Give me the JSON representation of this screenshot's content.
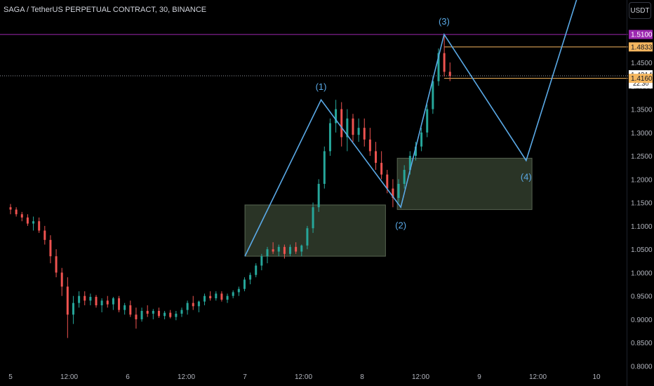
{
  "title": "SAGA / TetherUS PERPETUAL CONTRACT, 30, BINANCE",
  "currency_button": "USDT",
  "chart_data": {
    "type": "candlestick",
    "symbol": "SAGA / TetherUS PERPETUAL CONTRACT",
    "interval": "30",
    "exchange": "BINANCE",
    "y_ticks": [
      "1.4500",
      "1.4000",
      "1.3500",
      "1.3000",
      "1.2500",
      "1.2000",
      "1.1500",
      "1.1000",
      "1.0500",
      "1.0000",
      "0.9500",
      "0.9000",
      "0.8500",
      "0.8000"
    ],
    "x_ticks": [
      "5",
      "12:00",
      "6",
      "12:00",
      "7",
      "12:00",
      "8",
      "12:00",
      "9",
      "12:00",
      "10"
    ],
    "ylim": [
      0.8,
      1.55
    ],
    "price_labels": [
      {
        "value": "1.5100",
        "color": "#9c27b0"
      },
      {
        "value": "1.4833",
        "color": "#f5b75f"
      },
      {
        "value": "1.4214",
        "color": "#ffffff",
        "sub": "22:30"
      },
      {
        "value": "1.4160",
        "color": "#f5b75f"
      }
    ],
    "horizontal_lines": [
      {
        "price": 1.51,
        "color": "#9c27b0",
        "style": "solid"
      },
      {
        "price": 1.4833,
        "color": "#f5b75f",
        "style": "solid"
      },
      {
        "price": 1.4214,
        "color": "#9598a1",
        "style": "dotted"
      },
      {
        "price": 1.416,
        "color": "#f5b75f",
        "style": "solid"
      }
    ],
    "wave_labels": [
      "(1)",
      "(2)",
      "(3)",
      "(4)"
    ],
    "wave_points": [
      {
        "day": 7.0,
        "price": 1.035
      },
      {
        "day": 7.65,
        "price": 1.37
      },
      {
        "day": 8.33,
        "price": 1.14
      },
      {
        "day": 8.7,
        "price": 1.51
      },
      {
        "day": 9.4,
        "price": 1.24
      },
      {
        "day": 9.85,
        "price": 1.6
      }
    ],
    "zones": [
      {
        "day_from": 7.0,
        "day_to": 8.2,
        "price_low": 1.035,
        "price_high": 1.145
      },
      {
        "day_from": 8.3,
        "day_to": 9.45,
        "price_low": 1.135,
        "price_high": 1.245
      }
    ],
    "candles_ohlc": [
      [
        1.14,
        1.147,
        1.125,
        1.135
      ],
      [
        1.135,
        1.14,
        1.12,
        1.125
      ],
      [
        1.125,
        1.13,
        1.11,
        1.118
      ],
      [
        1.118,
        1.125,
        1.1,
        1.105
      ],
      [
        1.105,
        1.12,
        1.09,
        1.11
      ],
      [
        1.11,
        1.118,
        1.085,
        1.09
      ],
      [
        1.09,
        1.1,
        1.06,
        1.07
      ],
      [
        1.07,
        1.08,
        1.02,
        1.035
      ],
      [
        1.035,
        1.05,
        0.99,
        1.0
      ],
      [
        1.0,
        1.01,
        0.95,
        0.97
      ],
      [
        0.97,
        0.99,
        0.86,
        0.91
      ],
      [
        0.91,
        0.95,
        0.89,
        0.935
      ],
      [
        0.935,
        0.96,
        0.925,
        0.95
      ],
      [
        0.95,
        0.96,
        0.93,
        0.94
      ],
      [
        0.94,
        0.955,
        0.93,
        0.948
      ],
      [
        0.948,
        0.952,
        0.925,
        0.93
      ],
      [
        0.93,
        0.945,
        0.915,
        0.94
      ],
      [
        0.94,
        0.95,
        0.925,
        0.932
      ],
      [
        0.932,
        0.948,
        0.92,
        0.945
      ],
      [
        0.945,
        0.95,
        0.915,
        0.92
      ],
      [
        0.92,
        0.935,
        0.91,
        0.93
      ],
      [
        0.93,
        0.94,
        0.905,
        0.91
      ],
      [
        0.91,
        0.925,
        0.88,
        0.9
      ],
      [
        0.9,
        0.925,
        0.895,
        0.918
      ],
      [
        0.918,
        0.93,
        0.905,
        0.912
      ],
      [
        0.912,
        0.922,
        0.9,
        0.918
      ],
      [
        0.918,
        0.925,
        0.903,
        0.907
      ],
      [
        0.907,
        0.918,
        0.9,
        0.914
      ],
      [
        0.914,
        0.92,
        0.902,
        0.905
      ],
      [
        0.905,
        0.918,
        0.898,
        0.912
      ],
      [
        0.912,
        0.925,
        0.905,
        0.92
      ],
      [
        0.92,
        0.94,
        0.91,
        0.935
      ],
      [
        0.935,
        0.95,
        0.92,
        0.928
      ],
      [
        0.928,
        0.94,
        0.915,
        0.938
      ],
      [
        0.938,
        0.955,
        0.93,
        0.95
      ],
      [
        0.95,
        0.96,
        0.94,
        0.945
      ],
      [
        0.945,
        0.96,
        0.94,
        0.955
      ],
      [
        0.955,
        0.96,
        0.938,
        0.942
      ],
      [
        0.942,
        0.955,
        0.935,
        0.95
      ],
      [
        0.95,
        0.962,
        0.945,
        0.958
      ],
      [
        0.958,
        0.97,
        0.95,
        0.965
      ],
      [
        0.965,
        0.99,
        0.96,
        0.985
      ],
      [
        0.985,
        1.0,
        0.975,
        0.995
      ],
      [
        0.995,
        1.02,
        0.99,
        1.015
      ],
      [
        1.015,
        1.04,
        1.005,
        1.035
      ],
      [
        1.035,
        1.055,
        1.02,
        1.05
      ],
      [
        1.05,
        1.065,
        1.04,
        1.045
      ],
      [
        1.045,
        1.06,
        1.035,
        1.055
      ],
      [
        1.055,
        1.06,
        1.03,
        1.04
      ],
      [
        1.04,
        1.06,
        1.035,
        1.055
      ],
      [
        1.055,
        1.065,
        1.04,
        1.045
      ],
      [
        1.045,
        1.06,
        1.035,
        1.058
      ],
      [
        1.058,
        1.1,
        1.05,
        1.095
      ],
      [
        1.095,
        1.15,
        1.085,
        1.14
      ],
      [
        1.14,
        1.2,
        1.13,
        1.19
      ],
      [
        1.19,
        1.27,
        1.18,
        1.26
      ],
      [
        1.26,
        1.33,
        1.25,
        1.32
      ],
      [
        1.32,
        1.37,
        1.3,
        1.35
      ],
      [
        1.35,
        1.365,
        1.27,
        1.29
      ],
      [
        1.29,
        1.35,
        1.26,
        1.33
      ],
      [
        1.33,
        1.34,
        1.28,
        1.295
      ],
      [
        1.295,
        1.33,
        1.28,
        1.31
      ],
      [
        1.31,
        1.33,
        1.27,
        1.285
      ],
      [
        1.285,
        1.31,
        1.25,
        1.26
      ],
      [
        1.26,
        1.28,
        1.22,
        1.235
      ],
      [
        1.235,
        1.26,
        1.2,
        1.21
      ],
      [
        1.21,
        1.22,
        1.17,
        1.18
      ],
      [
        1.18,
        1.2,
        1.14,
        1.16
      ],
      [
        1.16,
        1.2,
        1.15,
        1.19
      ],
      [
        1.19,
        1.23,
        1.18,
        1.22
      ],
      [
        1.22,
        1.26,
        1.21,
        1.25
      ],
      [
        1.25,
        1.28,
        1.24,
        1.27
      ],
      [
        1.27,
        1.31,
        1.26,
        1.3
      ],
      [
        1.3,
        1.36,
        1.29,
        1.35
      ],
      [
        1.35,
        1.42,
        1.34,
        1.41
      ],
      [
        1.41,
        1.48,
        1.4,
        1.47
      ],
      [
        1.47,
        1.51,
        1.42,
        1.43
      ],
      [
        1.43,
        1.45,
        1.41,
        1.4214
      ]
    ]
  }
}
